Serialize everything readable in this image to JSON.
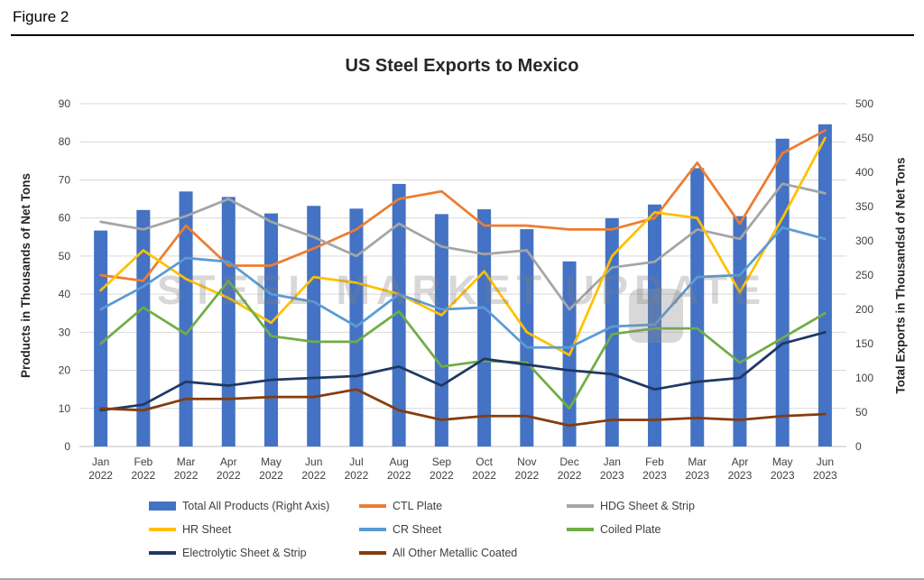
{
  "page": {
    "figure_label": "Figure 2"
  },
  "watermark": {
    "text": "STEEL MARKET UPDATE"
  },
  "chart_data": {
    "type": "combo-bar-line",
    "title": "US Steel Exports to Mexico",
    "categories": [
      [
        "Jan",
        "2022"
      ],
      [
        "Feb",
        "2022"
      ],
      [
        "Mar",
        "2022"
      ],
      [
        "Apr",
        "2022"
      ],
      [
        "May",
        "2022"
      ],
      [
        "Jun",
        "2022"
      ],
      [
        "Jul",
        "2022"
      ],
      [
        "Aug",
        "2022"
      ],
      [
        "Sep",
        "2022"
      ],
      [
        "Oct",
        "2022"
      ],
      [
        "Nov",
        "2022"
      ],
      [
        "Dec",
        "2022"
      ],
      [
        "Jan",
        "2023"
      ],
      [
        "Feb",
        "2023"
      ],
      [
        "Mar",
        "2023"
      ],
      [
        "Apr",
        "2023"
      ],
      [
        "May",
        "2023"
      ],
      [
        "Jun",
        "2023"
      ]
    ],
    "left_axis": {
      "title": "Products in Thousands of Net Tons",
      "min": 0,
      "max": 90,
      "step": 10
    },
    "right_axis": {
      "title": "Total Exports in Thousandsd of Net Tons",
      "min": 0,
      "max": 500,
      "step": 50
    },
    "colors": {
      "grid": "#d9d9d9",
      "axis_line": "#bfbfbf",
      "tick_label": "#404040"
    },
    "bar_series": {
      "name": "Total All Products (Right Axis)",
      "axis": "right",
      "color": "#4472c4",
      "values": [
        315,
        345,
        372,
        364,
        340,
        351,
        347,
        383,
        339,
        346,
        317,
        270,
        333,
        353,
        406,
        336,
        449,
        470
      ]
    },
    "line_series": [
      {
        "name": "CTL Plate",
        "color": "#ed7d31",
        "values": [
          45,
          43.5,
          58,
          47.5,
          47.5,
          52,
          57,
          65,
          67,
          58,
          58,
          57,
          57,
          60,
          74.5,
          58.5,
          77,
          83
        ]
      },
      {
        "name": "HDG Sheet & Strip",
        "color": "#a5a5a5",
        "values": [
          59,
          57,
          60.5,
          65,
          59,
          55,
          50,
          58.5,
          52.5,
          50.5,
          51.5,
          36,
          47,
          48.5,
          57,
          54.5,
          69,
          66.5
        ]
      },
      {
        "name": "HR Sheet",
        "color": "#ffc000",
        "values": [
          41,
          51.5,
          44,
          39,
          32.5,
          44.5,
          43,
          40,
          34.5,
          46,
          30,
          24,
          50,
          61.5,
          60,
          40.5,
          60,
          81
        ]
      },
      {
        "name": "CR Sheet",
        "color": "#5b9bd5",
        "values": [
          36,
          42,
          49.5,
          48.5,
          40,
          38,
          31.5,
          40,
          36,
          36.5,
          26,
          26,
          31.5,
          32,
          44.5,
          45,
          57.5,
          54.5
        ]
      },
      {
        "name": "Coiled Plate",
        "color": "#70ad47",
        "values": [
          27,
          36.5,
          29.5,
          43.5,
          29,
          27.5,
          27.5,
          35.5,
          21,
          22.5,
          22,
          10,
          29.5,
          31,
          31,
          22,
          28.5,
          35
        ]
      },
      {
        "name": "Electrolytic Sheet & Strip",
        "color": "#1f3864",
        "values": [
          9.5,
          11,
          17,
          16,
          17.5,
          18,
          18.5,
          21,
          16,
          23,
          21.5,
          20,
          19,
          15,
          17,
          18,
          27,
          30
        ]
      },
      {
        "name": "All Other Metallic Coated",
        "color": "#843c0c",
        "values": [
          10,
          9.5,
          12.5,
          12.5,
          13,
          13,
          15,
          9.5,
          7,
          8,
          8,
          5.5,
          7,
          7,
          7.5,
          7,
          8,
          8.5
        ]
      }
    ],
    "legend_position": "bottom"
  }
}
